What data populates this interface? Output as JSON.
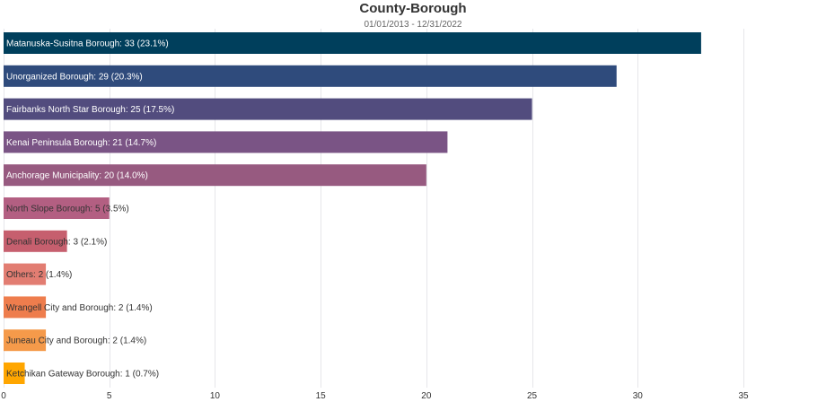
{
  "chart_data": {
    "type": "bar",
    "orientation": "horizontal",
    "title": "County-Borough",
    "subtitle": "01/01/2013 - 12/31/2022",
    "xlim": [
      0,
      35
    ],
    "xticks": [
      0,
      5,
      10,
      15,
      20,
      25,
      30,
      35
    ],
    "grid": true,
    "categories": [
      "Matanuska-Susitna Borough",
      "Unorganized Borough",
      "Fairbanks North Star Borough",
      "Kenai Peninsula Borough",
      "Anchorage Municipality",
      "North Slope Borough",
      "Denali Borough",
      "Others",
      "Wrangell City and Borough",
      "Juneau City and Borough",
      "Ketchikan Gateway Borough"
    ],
    "values": [
      33,
      29,
      25,
      21,
      20,
      5,
      3,
      2,
      2,
      2,
      1
    ],
    "labels": [
      "Matanuska-Susitna Borough: 33 (23.1%)",
      "Unorganized Borough: 29 (20.3%)",
      "Fairbanks North Star Borough: 25 (17.5%)",
      "Kenai Peninsula Borough: 21 (14.7%)",
      "Anchorage Municipality: 20 (14.0%)",
      "North Slope Borough: 5 (3.5%)",
      "Denali Borough: 3 (2.1%)",
      "Others: 2 (1.4%)",
      "Wrangell City and Borough: 2 (1.4%)",
      "Juneau City and Borough: 2 (1.4%)",
      "Ketchikan Gateway Borough: 1 (0.7%)"
    ],
    "colors": [
      "#003f5c",
      "#2f4b7c",
      "#524c7e",
      "#7a5485",
      "#975a80",
      "#b35f82",
      "#c65f6e",
      "#e27d72",
      "#ee7d4d",
      "#f59a4a",
      "#ffa600"
    ],
    "label_colors": [
      "#ffffff",
      "#ffffff",
      "#ffffff",
      "#ffffff",
      "#ffffff",
      "#333333",
      "#333333",
      "#333333",
      "#333333",
      "#333333",
      "#333333"
    ]
  }
}
